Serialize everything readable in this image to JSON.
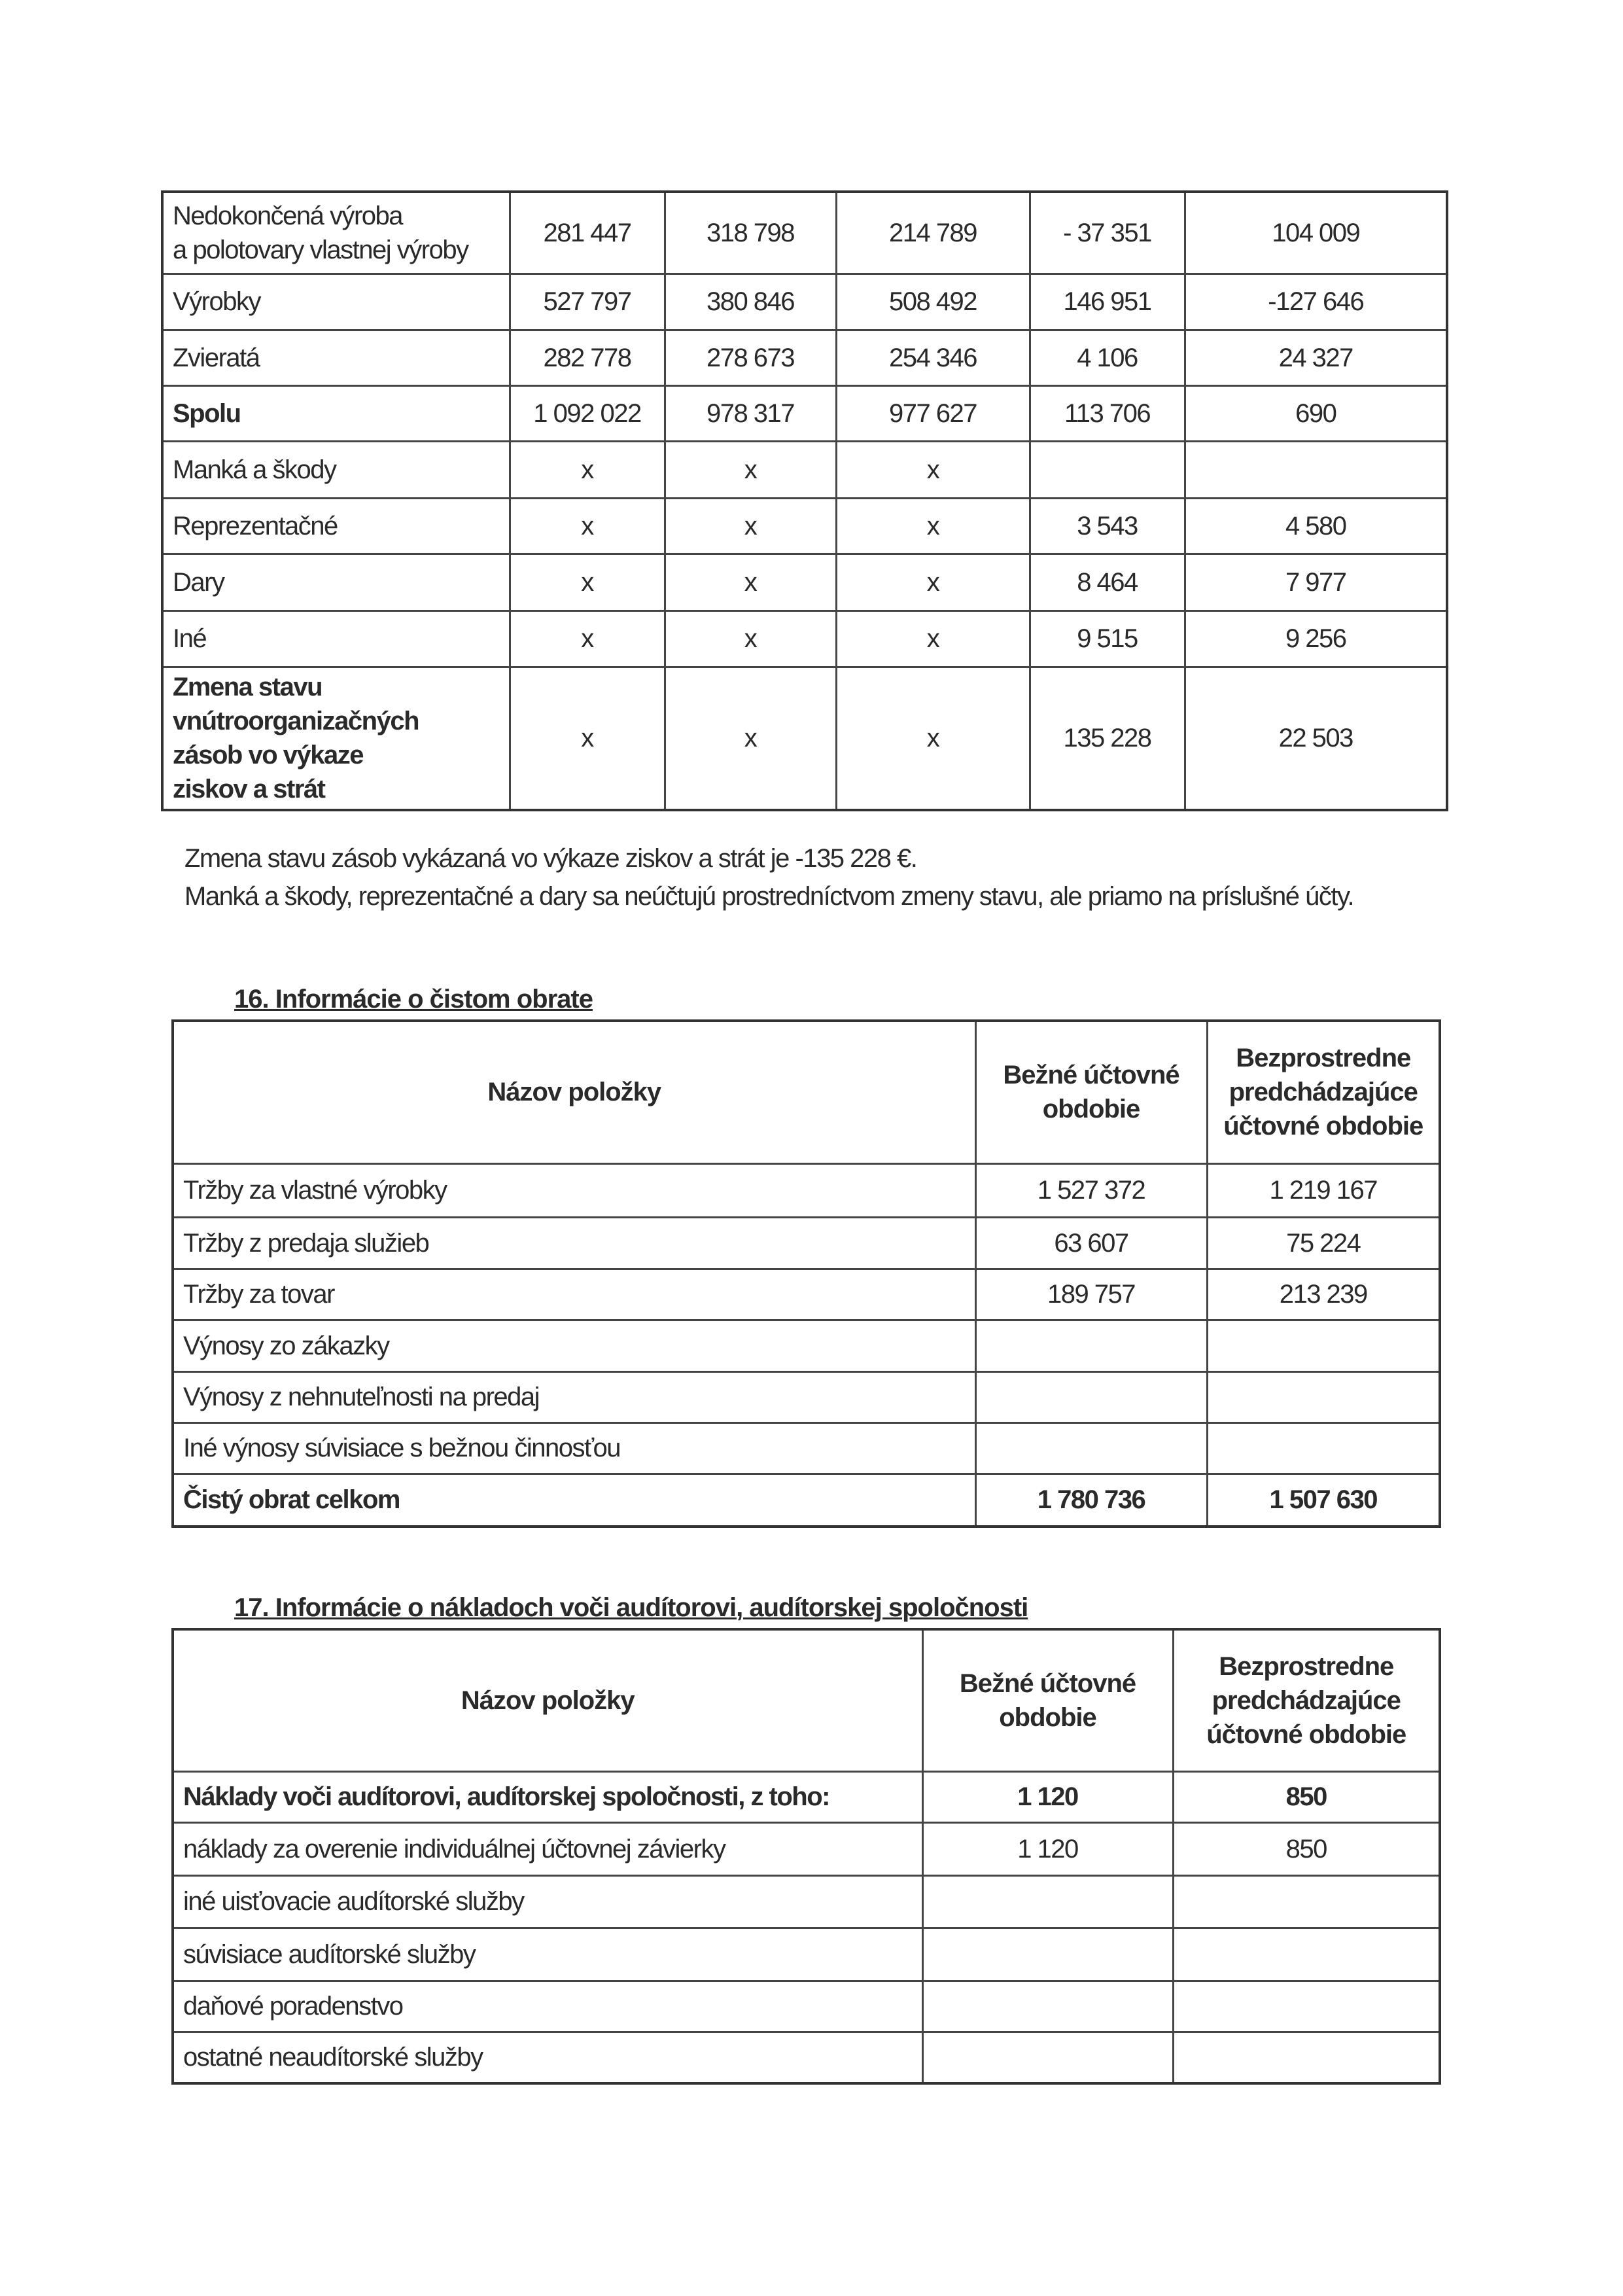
{
  "table_inventory": {
    "rows": [
      {
        "label": "Nedokončená výroba\na polotovary vlastnej výroby",
        "values": [
          "281 447",
          "318 798",
          "214 789",
          "- 37 351",
          "104 009"
        ],
        "bold": false
      },
      {
        "label": "Výrobky",
        "values": [
          "527 797",
          "380 846",
          "508 492",
          "146 951",
          "-127 646"
        ],
        "bold": false
      },
      {
        "label": "Zvieratá",
        "values": [
          "282 778",
          "278 673",
          "254 346",
          "4 106",
          "24 327"
        ],
        "bold": false
      },
      {
        "label": "Spolu",
        "values": [
          "1 092 022",
          "978 317",
          "977 627",
          "113 706",
          "690"
        ],
        "bold": true
      },
      {
        "label": "Manká a škody",
        "values": [
          "x",
          "x",
          "x",
          "",
          ""
        ],
        "bold": false
      },
      {
        "label": "Reprezentačné",
        "values": [
          "x",
          "x",
          "x",
          "3 543",
          "4 580"
        ],
        "bold": false
      },
      {
        "label": "Dary",
        "values": [
          "x",
          "x",
          "x",
          "8 464",
          "7 977"
        ],
        "bold": false
      },
      {
        "label": "Iné",
        "values": [
          "x",
          "x",
          "x",
          "9 515",
          "9 256"
        ],
        "bold": false
      },
      {
        "label": "Zmena stavu\nvnútroorganizačných\nzásob vo výkaze\nziskov a strát",
        "values": [
          "x",
          "x",
          "x",
          "135 228",
          "22 503"
        ],
        "bold": true
      }
    ]
  },
  "notes": {
    "line1": "Zmena stavu zásob vykázaná vo výkaze ziskov a strát je -135 228 €.",
    "line2": "Manká a škody, reprezentačné a dary sa neúčtujú prostredníctvom zmeny stavu, ale priamo na príslušné účty."
  },
  "section16": {
    "heading": "16.  Informácie o čistom obrate",
    "headers": [
      "Názov položky",
      "Bežné účtovné\nobdobie",
      "Bezprostredne\npredchádzajúce\núčtovné obdobie"
    ],
    "rows": [
      {
        "label": "Tržby za vlastné výrobky",
        "values": [
          "1 527 372",
          "1 219 167"
        ],
        "bold": false
      },
      {
        "label": "Tržby z predaja služieb",
        "values": [
          "63 607",
          "75 224"
        ],
        "bold": false
      },
      {
        "label": "Tržby za tovar",
        "values": [
          "189 757",
          "213 239"
        ],
        "bold": false
      },
      {
        "label": "Výnosy zo zákazky",
        "values": [
          "",
          ""
        ],
        "bold": false
      },
      {
        "label": "Výnosy z nehnuteľnosti na predaj",
        "values": [
          "",
          ""
        ],
        "bold": false
      },
      {
        "label": "Iné výnosy súvisiace s bežnou činnosťou",
        "values": [
          "",
          ""
        ],
        "bold": false
      },
      {
        "label": "Čistý obrat celkom",
        "values": [
          "1 780 736",
          "1 507 630"
        ],
        "bold": true
      }
    ]
  },
  "section17": {
    "heading": "17.  Informácie o nákladoch voči audítorovi, audítorskej spoločnosti",
    "headers": [
      "Názov položky",
      "Bežné účtovné\nobdobie",
      "Bezprostredne\npredchádzajúce\núčtovné obdobie"
    ],
    "rows": [
      {
        "label": "Náklady voči audítorovi, audítorskej spoločnosti, z toho:",
        "values": [
          "1 120",
          "850"
        ],
        "bold": true
      },
      {
        "label": "náklady za overenie individuálnej účtovnej závierky",
        "values": [
          "1 120",
          "850"
        ],
        "bold": false
      },
      {
        "label": "iné uisťovacie audítorské služby",
        "values": [
          "",
          ""
        ],
        "bold": false
      },
      {
        "label": "súvisiace audítorské služby",
        "values": [
          "",
          ""
        ],
        "bold": false
      },
      {
        "label": "daňové poradenstvo",
        "values": [
          "",
          ""
        ],
        "bold": false
      },
      {
        "label": "ostatné neaudítorské služby",
        "values": [
          "",
          ""
        ],
        "bold": false
      }
    ]
  }
}
